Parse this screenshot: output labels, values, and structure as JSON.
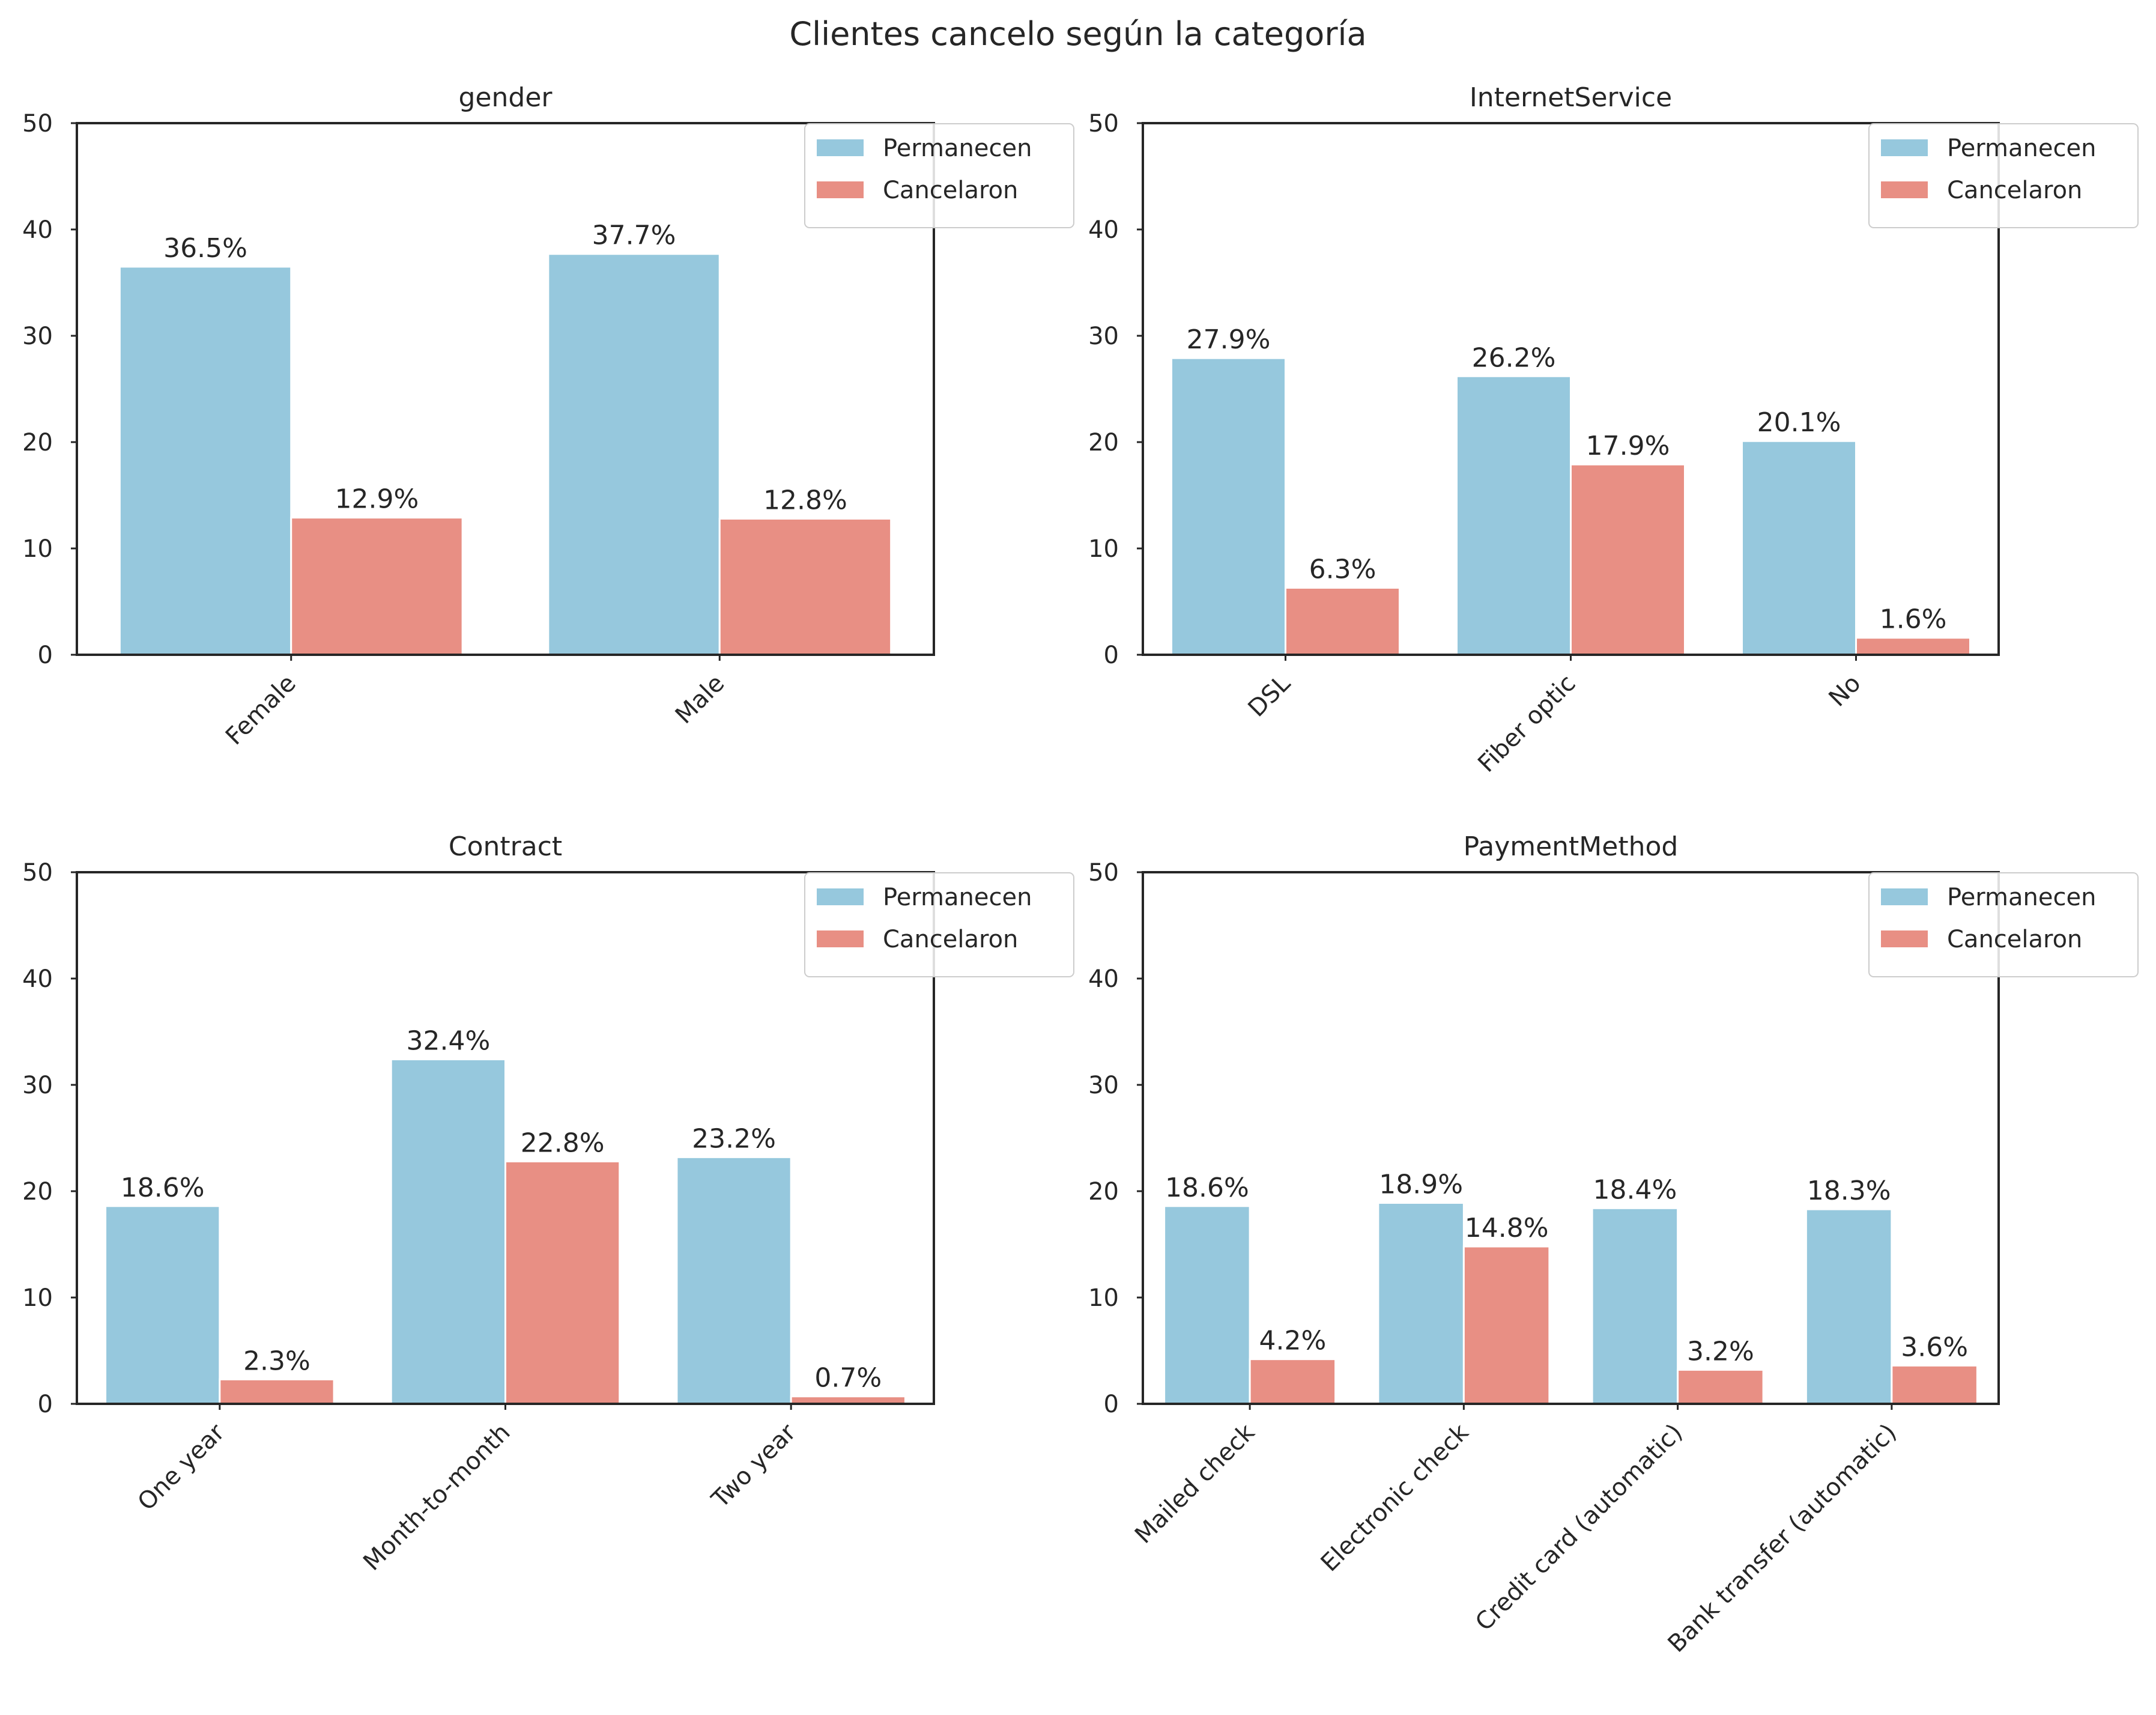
{
  "figure_title": "Clientes cancelo según la categoría",
  "colors": {
    "stay": "#96c8dd",
    "churn": "#e88f84",
    "text": "#262626",
    "axis": "#262626"
  },
  "legend_labels": [
    "Permanecen",
    "Cancelaron"
  ],
  "chart_data": [
    {
      "type": "bar",
      "title": "gender",
      "xlabel": "",
      "ylabel": "",
      "ylim": [
        0,
        50
      ],
      "yticks": [
        0,
        10,
        20,
        30,
        40,
        50
      ],
      "legend": "top-right",
      "categories": [
        "Female",
        "Male"
      ],
      "series": [
        {
          "name": "Permanecen",
          "values": [
            36.5,
            37.7
          ],
          "labels": [
            "36.5%",
            "37.7%"
          ]
        },
        {
          "name": "Cancelaron",
          "values": [
            12.9,
            12.8
          ],
          "labels": [
            "12.9%",
            "12.8%"
          ]
        }
      ]
    },
    {
      "type": "bar",
      "title": "InternetService",
      "xlabel": "",
      "ylabel": "",
      "ylim": [
        0,
        50
      ],
      "yticks": [
        0,
        10,
        20,
        30,
        40,
        50
      ],
      "legend": "top-right",
      "categories": [
        "DSL",
        "Fiber optic",
        "No"
      ],
      "series": [
        {
          "name": "Permanecen",
          "values": [
            27.9,
            26.2,
            20.1
          ],
          "labels": [
            "27.9%",
            "26.2%",
            "20.1%"
          ]
        },
        {
          "name": "Cancelaron",
          "values": [
            6.3,
            17.9,
            1.6
          ],
          "labels": [
            "6.3%",
            "17.9%",
            "1.6%"
          ]
        }
      ]
    },
    {
      "type": "bar",
      "title": "Contract",
      "xlabel": "",
      "ylabel": "",
      "ylim": [
        0,
        50
      ],
      "yticks": [
        0,
        10,
        20,
        30,
        40,
        50
      ],
      "legend": "top-right",
      "categories": [
        "One year",
        "Month-to-month",
        "Two year"
      ],
      "series": [
        {
          "name": "Permanecen",
          "values": [
            18.6,
            32.4,
            23.2
          ],
          "labels": [
            "18.6%",
            "32.4%",
            "23.2%"
          ]
        },
        {
          "name": "Cancelaron",
          "values": [
            2.3,
            22.8,
            0.7
          ],
          "labels": [
            "2.3%",
            "22.8%",
            "0.7%"
          ]
        }
      ]
    },
    {
      "type": "bar",
      "title": "PaymentMethod",
      "xlabel": "",
      "ylabel": "",
      "ylim": [
        0,
        50
      ],
      "yticks": [
        0,
        10,
        20,
        30,
        40,
        50
      ],
      "legend": "top-right",
      "categories": [
        "Mailed check",
        "Electronic check",
        "Credit card (automatic)",
        "Bank transfer (automatic)"
      ],
      "series": [
        {
          "name": "Permanecen",
          "values": [
            18.6,
            18.9,
            18.4,
            18.3
          ],
          "labels": [
            "18.6%",
            "18.9%",
            "18.4%",
            "18.3%"
          ]
        },
        {
          "name": "Cancelaron",
          "values": [
            4.2,
            14.8,
            3.2,
            3.6
          ],
          "labels": [
            "4.2%",
            "14.8%",
            "3.2%",
            "3.6%"
          ]
        }
      ]
    }
  ]
}
